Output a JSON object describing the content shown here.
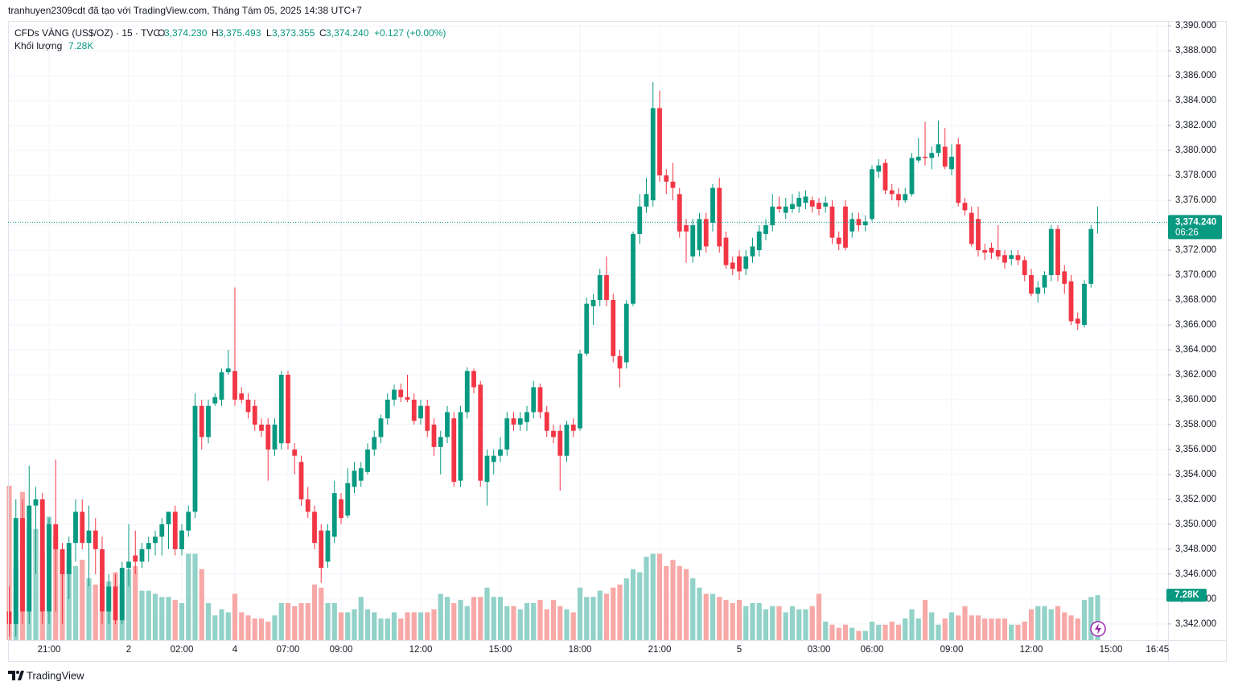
{
  "chart_data": {
    "type": "candlestick",
    "title": "tranhuyen2309cdt đã tạo với TradingView.com, Tháng Tám 05, 2025 14:38 UTC+7",
    "symbol": "CFDs VÀNG (US$/OZ) · 15 · TVC",
    "ohlc_header": [
      {
        "key": "O",
        "label": "3,374.230"
      },
      {
        "key": "H",
        "label": "3,375.493"
      },
      {
        "key": "L",
        "label": "3,373.355"
      },
      {
        "key": "C",
        "label": "3,374.240"
      }
    ],
    "change": "+0.127 (+0.00%)",
    "last_price_label": "3,374.240",
    "countdown": "06:26",
    "up_color": "#089981",
    "down_color": "#f23645",
    "volume_up_color": "#92d2c8",
    "volume_down_color": "#f7a9a7",
    "grid": true,
    "ylim": [
      3340.7,
      3390.4
    ],
    "yticks": [
      {
        "value": 3342,
        "label": "3,342.000"
      },
      {
        "value": 3344,
        "label": "3,344.000"
      },
      {
        "value": 3346,
        "label": "3,346.000"
      },
      {
        "value": 3348,
        "label": "3,348.000"
      },
      {
        "value": 3350,
        "label": "3,350.000"
      },
      {
        "value": 3352,
        "label": "3,352.000"
      },
      {
        "value": 3354,
        "label": "3,354.000"
      },
      {
        "value": 3356,
        "label": "3,356.000"
      },
      {
        "value": 3358,
        "label": "3,358.000"
      },
      {
        "value": 3360,
        "label": "3,360.000"
      },
      {
        "value": 3362,
        "label": "3,362.000"
      },
      {
        "value": 3364,
        "label": "3,364.000"
      },
      {
        "value": 3366,
        "label": "3,366.000"
      },
      {
        "value": 3368,
        "label": "3,368.000"
      },
      {
        "value": 3370,
        "label": "3,370.000"
      },
      {
        "value": 3372,
        "label": "3,372.000"
      },
      {
        "value": 3374,
        "label": "3,374.000"
      },
      {
        "value": 3376,
        "label": "3,376.000"
      },
      {
        "value": 3378,
        "label": "3,378.000"
      },
      {
        "value": 3380,
        "label": "3,380.000"
      },
      {
        "value": 3382,
        "label": "3,382.000"
      },
      {
        "value": 3384,
        "label": "3,384.000"
      },
      {
        "value": 3386,
        "label": "3,386.000"
      },
      {
        "value": 3388,
        "label": "3,388.000"
      },
      {
        "value": 3390,
        "label": "3,390.000"
      }
    ],
    "categories": [
      null,
      null,
      null,
      null,
      null,
      null,
      "21:00",
      null,
      null,
      null,
      null,
      null,
      null,
      null,
      null,
      null,
      null,
      null,
      "2",
      null,
      null,
      null,
      null,
      null,
      null,
      null,
      "02:00",
      null,
      null,
      null,
      null,
      null,
      null,
      null,
      "4",
      null,
      null,
      null,
      null,
      null,
      null,
      null,
      "07:00",
      null,
      null,
      null,
      null,
      null,
      null,
      null,
      "09:00",
      null,
      null,
      null,
      null,
      null,
      null,
      null,
      null,
      null,
      null,
      null,
      "12:00",
      null,
      null,
      null,
      null,
      null,
      null,
      null,
      null,
      null,
      null,
      null,
      "15:00",
      null,
      null,
      null,
      null,
      null,
      null,
      null,
      null,
      null,
      null,
      null,
      "18:00",
      null,
      null,
      null,
      null,
      null,
      null,
      null,
      null,
      null,
      null,
      null,
      "21:00",
      null,
      null,
      null,
      null,
      null,
      null,
      null,
      null,
      null,
      null,
      null,
      "5",
      null,
      null,
      null,
      null,
      null,
      null,
      null,
      null,
      null,
      null,
      null,
      "03:00",
      null,
      null,
      null,
      null,
      null,
      null,
      null,
      "06:00",
      null,
      null,
      null,
      null,
      null,
      null,
      null,
      null,
      null,
      null,
      null,
      "09:00",
      null,
      null,
      null,
      null,
      null,
      null,
      null,
      null,
      null,
      null,
      null,
      "12:00",
      null,
      null,
      null,
      null,
      null,
      null,
      null,
      null,
      null,
      null,
      null,
      "15:00",
      null,
      null,
      null,
      null,
      null,
      null,
      "16:45",
      null
    ],
    "ohlc": [
      [
        3343,
        3345,
        3341,
        3342
      ],
      [
        3342,
        3352,
        3341,
        3350.5
      ],
      [
        3350.5,
        3352,
        3342,
        3343
      ],
      [
        3343,
        3354.7,
        3342,
        3351.5
      ],
      [
        3351.5,
        3353,
        3346,
        3352
      ],
      [
        3352,
        3352.5,
        3342,
        3343
      ],
      [
        3343,
        3350.5,
        3342,
        3350
      ],
      [
        3350,
        3355.2,
        3343,
        3348
      ],
      [
        3348,
        3348.5,
        3342,
        3346
      ],
      [
        3346,
        3349,
        3344,
        3348.5
      ],
      [
        3348.5,
        3352,
        3347,
        3351
      ],
      [
        3351,
        3352,
        3348,
        3348.5
      ],
      [
        3348.5,
        3351.5,
        3345,
        3349.5
      ],
      [
        3349.5,
        3350.5,
        3346,
        3348
      ],
      [
        3348,
        3349,
        3342,
        3343
      ],
      [
        3343,
        3346,
        3342,
        3345
      ],
      [
        3345,
        3346,
        3342,
        3342.3
      ],
      [
        3342.3,
        3347,
        3342,
        3346.5
      ],
      [
        3346.5,
        3350,
        3345,
        3347
      ],
      [
        3347.5,
        3349.5,
        3346,
        3347
      ],
      [
        3347,
        3348.5,
        3346.5,
        3348
      ],
      [
        3348,
        3349,
        3347,
        3348.5
      ],
      [
        3348.5,
        3349.5,
        3347.5,
        3349
      ],
      [
        3349,
        3350.5,
        3347.5,
        3350
      ],
      [
        3350,
        3351,
        3348,
        3351
      ],
      [
        3351,
        3351.5,
        3347.5,
        3348
      ],
      [
        3348,
        3350,
        3347.5,
        3349.5
      ],
      [
        3349.5,
        3351.5,
        3349,
        3351
      ],
      [
        3351,
        3360.5,
        3350.5,
        3359.5
      ],
      [
        3359.5,
        3360,
        3356,
        3357
      ],
      [
        3357,
        3360,
        3356.5,
        3359.5
      ],
      [
        3359.7,
        3360.5,
        3359.5,
        3360.2
      ],
      [
        3360,
        3362.5,
        3359.5,
        3362.2
      ],
      [
        3362.2,
        3364,
        3362,
        3362.5
      ],
      [
        3362.3,
        3369,
        3359.5,
        3360
      ],
      [
        3360.5,
        3361,
        3359.7,
        3360
      ],
      [
        3360,
        3360.5,
        3358.5,
        3359
      ],
      [
        3359.5,
        3360,
        3357.5,
        3358
      ],
      [
        3358,
        3358.5,
        3357,
        3357.5
      ],
      [
        3358,
        3358.5,
        3353.5,
        3356
      ],
      [
        3356,
        3358.5,
        3355.5,
        3358
      ],
      [
        3356.5,
        3362.3,
        3356,
        3362
      ],
      [
        3362,
        3362.3,
        3356,
        3356.5
      ],
      [
        3356,
        3356.5,
        3354,
        3355.5
      ],
      [
        3355,
        3355.5,
        3351.5,
        3352
      ],
      [
        3352,
        3353,
        3350.5,
        3351
      ],
      [
        3351,
        3351.5,
        3348,
        3348.5
      ],
      [
        3349.5,
        3350,
        3345.3,
        3346.5
      ],
      [
        3347,
        3350,
        3346.5,
        3349.5
      ],
      [
        3349,
        3353.5,
        3348.5,
        3352.5
      ],
      [
        3352,
        3352.5,
        3350,
        3350.5
      ],
      [
        3350.7,
        3354.5,
        3350.5,
        3353.3
      ],
      [
        3353,
        3355,
        3352.5,
        3354.3
      ],
      [
        3353.5,
        3355,
        3353,
        3354.5
      ],
      [
        3354.2,
        3356.5,
        3354,
        3356
      ],
      [
        3356,
        3357.5,
        3355.5,
        3357
      ],
      [
        3357,
        3358.8,
        3356.5,
        3358.5
      ],
      [
        3358.5,
        3360.5,
        3358,
        3360
      ],
      [
        3360,
        3361.2,
        3359.5,
        3360.8
      ],
      [
        3360.8,
        3361.3,
        3359.8,
        3360.2
      ],
      [
        3360.2,
        3362,
        3359.8,
        3360
      ],
      [
        3360,
        3360.5,
        3358,
        3358.3
      ],
      [
        3358.5,
        3360,
        3358,
        3359.5
      ],
      [
        3359.5,
        3360,
        3357,
        3357.5
      ],
      [
        3358,
        3358.5,
        3355.5,
        3356.2
      ],
      [
        3356.2,
        3357.5,
        3354,
        3357
      ],
      [
        3357,
        3359.5,
        3356.5,
        3359
      ],
      [
        3358.5,
        3359,
        3353,
        3353.4
      ],
      [
        3353.5,
        3359.5,
        3353,
        3359
      ],
      [
        3359,
        3362.6,
        3358.5,
        3362.3
      ],
      [
        3362.3,
        3362.5,
        3360.5,
        3361
      ],
      [
        3361.2,
        3361.5,
        3353,
        3353.5
      ],
      [
        3353.4,
        3356,
        3351.5,
        3355.5
      ],
      [
        3355,
        3356,
        3354,
        3355.5
      ],
      [
        3355.5,
        3357,
        3355,
        3356
      ],
      [
        3356,
        3359,
        3355.5,
        3358.5
      ],
      [
        3358.5,
        3359,
        3357.5,
        3358
      ],
      [
        3358,
        3359,
        3357.5,
        3358.5
      ],
      [
        3358.2,
        3359.5,
        3357.5,
        3359
      ],
      [
        3359,
        3361.5,
        3358.5,
        3361
      ],
      [
        3361,
        3361.3,
        3358.5,
        3359
      ],
      [
        3359,
        3359.5,
        3357,
        3357.5
      ],
      [
        3357.5,
        3358,
        3356.5,
        3357
      ],
      [
        3357.5,
        3358,
        3352.7,
        3355.5
      ],
      [
        3355.5,
        3358.3,
        3355,
        3358
      ],
      [
        3358,
        3358.5,
        3357,
        3357.5
      ],
      [
        3357.7,
        3364,
        3357.5,
        3363.7
      ],
      [
        3363.7,
        3368.2,
        3363.5,
        3367.7
      ],
      [
        3367.5,
        3368.5,
        3366,
        3368
      ],
      [
        3368,
        3370.5,
        3367.5,
        3370
      ],
      [
        3370,
        3371.5,
        3367.5,
        3368
      ],
      [
        3368,
        3368.5,
        3363,
        3363.5
      ],
      [
        3363.5,
        3364,
        3361,
        3362.5
      ],
      [
        3363,
        3368,
        3362.5,
        3367.7
      ],
      [
        3367.7,
        3373.5,
        3367.5,
        3373.3
      ],
      [
        3373.3,
        3376.5,
        3372.5,
        3375.5
      ],
      [
        3375.5,
        3377.8,
        3375,
        3376.5
      ],
      [
        3376,
        3385.5,
        3375.5,
        3383.4
      ],
      [
        3383.4,
        3384.8,
        3377.5,
        3378
      ],
      [
        3378,
        3378.5,
        3376.5,
        3377.5
      ],
      [
        3377.5,
        3379,
        3376,
        3377
      ],
      [
        3376.5,
        3377,
        3373,
        3373.5
      ],
      [
        3374,
        3374.5,
        3371,
        3373.5
      ],
      [
        3371.5,
        3374.5,
        3371,
        3374
      ],
      [
        3372,
        3375,
        3371.5,
        3374.5
      ],
      [
        3374.5,
        3375,
        3371.8,
        3372.3
      ],
      [
        3374.2,
        3377.3,
        3373.5,
        3377
      ],
      [
        3377,
        3377.8,
        3371.8,
        3372.3
      ],
      [
        3373,
        3373.5,
        3370.5,
        3370.8
      ],
      [
        3371,
        3371.5,
        3370,
        3370.5
      ],
      [
        3371.5,
        3372,
        3369.6,
        3370.3
      ],
      [
        3370.5,
        3372,
        3370,
        3371.5
      ],
      [
        3371.5,
        3373,
        3371,
        3372.3
      ],
      [
        3372,
        3374,
        3371.5,
        3373.5
      ],
      [
        3373.3,
        3374.5,
        3372.8,
        3374
      ],
      [
        3374,
        3376.5,
        3373.5,
        3375.5
      ],
      [
        3375.5,
        3376.3,
        3375,
        3375.3
      ],
      [
        3375,
        3376.2,
        3374.5,
        3375.5
      ],
      [
        3375.3,
        3376.5,
        3375,
        3375.7
      ],
      [
        3375.5,
        3376.7,
        3375,
        3376.2
      ],
      [
        3375.8,
        3376.8,
        3375.3,
        3376.3
      ],
      [
        3376,
        3376.3,
        3375,
        3375.5
      ],
      [
        3375.8,
        3376.2,
        3374.8,
        3375.3
      ],
      [
        3375.5,
        3376.3,
        3375,
        3375.8
      ],
      [
        3375.5,
        3376,
        3372.5,
        3373
      ],
      [
        3373,
        3373.5,
        3372,
        3372.5
      ],
      [
        3375.5,
        3376,
        3372,
        3372.2
      ],
      [
        3373.5,
        3375,
        3373,
        3374.5
      ],
      [
        3374.5,
        3375,
        3373.5,
        3374
      ],
      [
        3374,
        3374.8,
        3373.5,
        3374.3
      ],
      [
        3374.5,
        3378.8,
        3374.3,
        3378.5
      ],
      [
        3378.3,
        3379.3,
        3377.8,
        3378.8
      ],
      [
        3379,
        3379.3,
        3376.5,
        3376.8
      ],
      [
        3376.8,
        3377.3,
        3376,
        3376.5
      ],
      [
        3376.5,
        3377,
        3375.5,
        3376
      ],
      [
        3376,
        3377,
        3375.8,
        3376.5
      ],
      [
        3376.5,
        3379.8,
        3376.3,
        3379.4
      ],
      [
        3379.2,
        3381,
        3379,
        3379.5
      ],
      [
        3379.5,
        3382.3,
        3378.8,
        3379.4
      ],
      [
        3379.4,
        3380.3,
        3378.5,
        3379.8
      ],
      [
        3379.8,
        3382.4,
        3379.5,
        3380.5
      ],
      [
        3380.3,
        3381.8,
        3378.5,
        3378.7
      ],
      [
        3378.5,
        3380.5,
        3378,
        3379.5
      ],
      [
        3380.5,
        3381,
        3375.5,
        3375.8
      ],
      [
        3375.8,
        3376.2,
        3374.8,
        3375.2
      ],
      [
        3375,
        3375.5,
        3372.3,
        3372.5
      ],
      [
        3374.5,
        3375.5,
        3371.5,
        3372
      ],
      [
        3372,
        3372.5,
        3371.2,
        3371.8
      ],
      [
        3372.2,
        3372.6,
        3371.3,
        3371.8
      ],
      [
        3372,
        3374,
        3371.2,
        3371.5
      ],
      [
        3371.6,
        3372,
        3370.5,
        3371
      ],
      [
        3371.3,
        3372,
        3370.8,
        3371.6
      ],
      [
        3371.6,
        3372,
        3370.8,
        3371.2
      ],
      [
        3371.2,
        3371.5,
        3369.5,
        3370
      ],
      [
        3370,
        3370.5,
        3368.3,
        3368.5
      ],
      [
        3368.5,
        3369.5,
        3367.8,
        3369
      ],
      [
        3369,
        3370.3,
        3368.5,
        3370
      ],
      [
        3370,
        3374,
        3369.5,
        3373.7
      ],
      [
        3373.7,
        3374,
        3369.5,
        3370
      ],
      [
        3370.3,
        3370.8,
        3368.5,
        3369.3
      ],
      [
        3369.5,
        3370,
        3366,
        3366.3
      ],
      [
        3366.5,
        3367,
        3365.6,
        3366.1
      ],
      [
        3366,
        3369.6,
        3365.8,
        3369.3
      ],
      [
        3369.3,
        3374,
        3369,
        3373.7
      ],
      [
        3374.23,
        3375.493,
        3373.355,
        3374.24
      ],
      null,
      null,
      null,
      null,
      null,
      null,
      null,
      null,
      null,
      null
    ],
    "volume": {
      "name": "Khối lượng",
      "last_label": "7.28K",
      "values": [
        25,
        12,
        24,
        18,
        18,
        14,
        20,
        17,
        14,
        13,
        12,
        13,
        10,
        9,
        9,
        9.5,
        11,
        9,
        11.5,
        12,
        8,
        8,
        7.5,
        7,
        7,
        6.5,
        6,
        14,
        14,
        11.5,
        6,
        4,
        5,
        4.5,
        7.5,
        4.5,
        4,
        3.5,
        3.5,
        3,
        4,
        6,
        6,
        5.5,
        6,
        6,
        9,
        8.5,
        6,
        6,
        4.5,
        4.5,
        5,
        7,
        5,
        4.5,
        3.5,
        3.5,
        4.5,
        3.5,
        4.5,
        4.5,
        4.5,
        4.5,
        5,
        7.5,
        7,
        6,
        6.5,
        5.5,
        7,
        7,
        8.5,
        7,
        7,
        5.5,
        5.5,
        5,
        6,
        6,
        6.5,
        5,
        6.5,
        5.5,
        5,
        4.5,
        8.5,
        7,
        7,
        8,
        7.5,
        8.5,
        9,
        10,
        11.5,
        11,
        13.5,
        14,
        14,
        12,
        13,
        12,
        11.5,
        10,
        8.5,
        7.5,
        7.5,
        7,
        6.5,
        6,
        6.5,
        5.5,
        6,
        6,
        5,
        5.5,
        5.5,
        4.5,
        5.5,
        5,
        5,
        5.5,
        7.5,
        3,
        2.5,
        2,
        2.5,
        2,
        1.5,
        1.5,
        3,
        2.5,
        2.5,
        3,
        2.5,
        3.5,
        5,
        3.5,
        6.5,
        4.5,
        2.5,
        3.5,
        4.5,
        4,
        5.5,
        4,
        4,
        3.5,
        3.5,
        3.5,
        3.5,
        2.5,
        2.5,
        3,
        5,
        5.5,
        5.5,
        5,
        5.5,
        4.5,
        4,
        3.5,
        6.5,
        7,
        7.28,
        null,
        null,
        null,
        null,
        null,
        null,
        null,
        null,
        null,
        null
      ]
    }
  },
  "footer": {
    "brand": "TradingView"
  }
}
